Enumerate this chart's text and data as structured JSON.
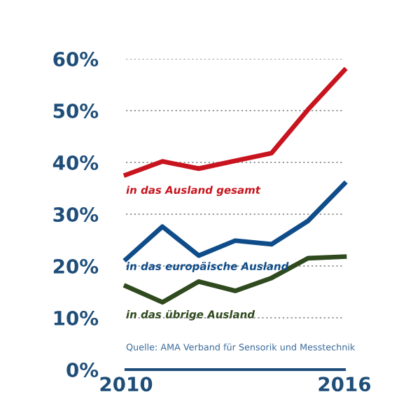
{
  "chart_data": {
    "type": "line",
    "x": [
      2010,
      2011,
      2012,
      2013,
      2014,
      2015,
      2016
    ],
    "series": [
      {
        "name": "in das Ausland gesamt",
        "color": "#c8141e",
        "values": [
          37.6,
          40.2,
          38.8,
          40.3,
          41.8,
          50.2,
          57.8
        ]
      },
      {
        "name": "in das europäische Ausland",
        "color": "#0f4c8a",
        "values": [
          21.3,
          27.6,
          22.0,
          24.9,
          24.2,
          28.7,
          35.9
        ]
      },
      {
        "name": "in das übrige Ausland",
        "color": "#2f4a1e",
        "values": [
          16.1,
          13.0,
          17.0,
          15.2,
          17.7,
          21.5,
          21.8
        ]
      }
    ],
    "xlim": [
      2010,
      2016
    ],
    "xticks": [
      2010,
      2016
    ],
    "ylim": [
      0,
      60
    ],
    "yticks": [
      {
        "value": 0,
        "label": "0%"
      },
      {
        "value": 10,
        "label": "10%"
      },
      {
        "value": 20,
        "label": "20%"
      },
      {
        "value": 30,
        "label": "30%"
      },
      {
        "value": 40,
        "label": "40%"
      },
      {
        "value": 50,
        "label": "50%"
      },
      {
        "value": 60,
        "label": "60%"
      }
    ],
    "grid": "y",
    "line_style": "solid",
    "marker": "none",
    "annotations": [
      "Quelle: AMA Verband für Sensorik und Messtechnik"
    ]
  }
}
